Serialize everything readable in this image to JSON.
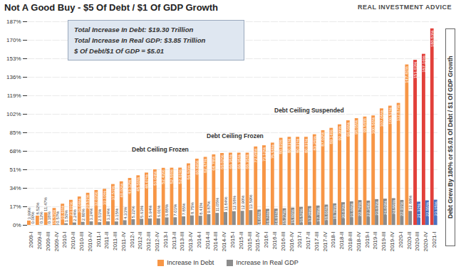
{
  "chart_data": {
    "type": "bar",
    "title": "Not A Good Buy - $5 Of Debt / $1 Of GDP Growth",
    "annotations": {
      "brand": "REAL INVESTMENT ADVICE",
      "box": [
        "Total Increase In Debt: $19.30 Trillion",
        "Total Increase In Real GDP: $3.85 Trillion",
        "$ Of Debt/$1 Of GDP = $5.01"
      ],
      "ceiling": [
        "Debt Ceiling Frozen",
        "Debt Ceiling Frozen",
        "Debt Ceiling Suspended"
      ],
      "side_note": "Debt Grew By 180% or $5.01 Of Debt / $1 Of GDP Growth"
    },
    "categories": [
      "2009-I",
      "2009-II",
      "2009-III",
      "2009-IV",
      "2010-I",
      "2010-II",
      "2010-III",
      "2010-IV",
      "2011-I",
      "2011-II",
      "2011-III",
      "2011-IV",
      "2012-I",
      "2012-II",
      "2012-III",
      "2012-IV",
      "2013-I",
      "2013-II",
      "2013-III",
      "2013-IV",
      "2014-I",
      "2014-II",
      "2014-III",
      "2014-IV",
      "2015-I",
      "2015-II",
      "2015-III",
      "2015-IV",
      "2016-I",
      "2016-II",
      "2016-III",
      "2016-IV",
      "2017-I",
      "2017-II",
      "2017-III",
      "2017-IV",
      "2018-I",
      "2018-II",
      "2018-III",
      "2018-IV",
      "2019-I",
      "2019-II",
      "2019-III",
      "2019-IV",
      "2020-I",
      "2020-II",
      "2020-III",
      "2020-IV",
      "2021-I"
    ],
    "series": [
      {
        "name": "Increase In Debt",
        "color": "#f79646",
        "colors": [
          "#f79646",
          "#f79646",
          "#f79646",
          "#f79646",
          "#f79646",
          "#f79646",
          "#f79646",
          "#f79646",
          "#f79646",
          "#f79646",
          "#f79646",
          "#f79646",
          "#f79646",
          "#f79646",
          "#f79646",
          "#f79646",
          "#f79646",
          "#f79646",
          "#f79646",
          "#f79646",
          "#f79646",
          "#f79646",
          "#f79646",
          "#f79646",
          "#f79646",
          "#f79646",
          "#f79646",
          "#f79646",
          "#f79646",
          "#f79646",
          "#f79646",
          "#f79646",
          "#f79646",
          "#f79646",
          "#f79646",
          "#f79646",
          "#f79646",
          "#f79646",
          "#f79646",
          "#f79646",
          "#f79646",
          "#f79646",
          "#f79646",
          "#f79646",
          "#f79646",
          "#f79646",
          "#e2403a",
          "#e2403a",
          "#e2403a"
        ],
        "values": [
          3.99,
          8.52,
          11.47,
          15.53,
          19.46,
          23.01,
          26.08,
          29.51,
          32.03,
          33.1,
          37.51,
          40.02,
          43.12,
          45.56,
          48.07,
          51.04,
          52.43,
          52.55,
          52.61,
          56.53,
          60.84,
          62.47,
          64.78,
          66.02,
          66.35,
          66.35,
          66.35,
          72.04,
          73.12,
          75.58,
          80.03,
          80.91,
          80.91,
          80.91,
          83.25,
          87.02,
          89.14,
          92.39,
          96.06,
          98.05,
          99.54,
          100.56,
          107.05,
          109.52,
          112.07,
          147.41,
          151.63,
          157.16,
          180.53
        ],
        "value_labels": [
          "3.99%",
          "8.52%",
          "11.47%",
          "15.53%",
          "19.46%",
          "23.01%",
          "26.08%",
          "29.51%",
          "32.03%",
          "33.10%",
          "37.51%",
          "40.02%",
          "43.12%",
          "45.56%",
          "48.07%",
          "51.04%",
          "52.43%",
          "52.55%",
          "52.61%",
          "56.53%",
          "60.84%",
          "62.47%",
          "64.78%",
          "66.02%",
          "66.35%",
          "66.35%",
          "66.35%",
          "72.04%",
          "73.12%",
          "75.58%",
          "80.03%",
          "80.91%",
          "80.91%",
          "80.91%",
          "83.25%",
          "87.02%",
          "89.14%",
          "92.39%",
          "96.06%",
          "98.05%",
          "99.54%",
          "100.56%",
          "107.05%",
          "109.52%",
          "112.07%",
          "147.41%",
          "151.63%",
          "157.16%",
          "180.53%"
        ]
      },
      {
        "name": "Increase In Real GDP",
        "color": "#8c8c8c",
        "colors": [
          "#8c8c8c",
          "#8c8c8c",
          "#8c8c8c",
          "#8c8c8c",
          "#8c8c8c",
          "#8c8c8c",
          "#8c8c8c",
          "#8c8c8c",
          "#8c8c8c",
          "#8c8c8c",
          "#8c8c8c",
          "#8c8c8c",
          "#8c8c8c",
          "#8c8c8c",
          "#8c8c8c",
          "#8c8c8c",
          "#8c8c8c",
          "#8c8c8c",
          "#8c8c8c",
          "#8c8c8c",
          "#8c8c8c",
          "#8c8c8c",
          "#8c8c8c",
          "#8c8c8c",
          "#8c8c8c",
          "#8c8c8c",
          "#8c8c8c",
          "#8c8c8c",
          "#8c8c8c",
          "#8c8c8c",
          "#8c8c8c",
          "#8c8c8c",
          "#8c8c8c",
          "#8c8c8c",
          "#8c8c8c",
          "#8c8c8c",
          "#8c8c8c",
          "#8c8c8c",
          "#8c8c8c",
          "#8c8c8c",
          "#8c8c8c",
          "#8c8c8c",
          "#8c8c8c",
          "#8c8c8c",
          "#8c8c8c",
          "#8c8c8c",
          "#4a72c2",
          "#4a72c2",
          "#4a72c2"
        ],
        "values": [
          0,
          0.12,
          0.18,
          0.57,
          1.5,
          2.24,
          2.8,
          3.24,
          2.51,
          3.24,
          3.15,
          4.31,
          5.22,
          5.63,
          5.94,
          6.01,
          6.88,
          7.01,
          7.85,
          8.75,
          8.41,
          9.87,
          11.05,
          11.84,
          12.58,
          12.9,
          13.59,
          14.08,
          14.76,
          14.91,
          15.27,
          15.89,
          16.52,
          17.28,
          17.78,
          18.66,
          19.78,
          20.83,
          21.6,
          22.74,
          22.34,
          23.63,
          24.09,
          24.55,
          22.91,
          12.88,
          21.32,
          22.55,
          23.15
        ],
        "value_labels": [
          "0.00%",
          "0.12%",
          "0.18%",
          "0.57%",
          "1.50%",
          "2.24%",
          "2.80%",
          "3.24%",
          "2.51%",
          "3.24%",
          "3.15%",
          "4.31%",
          "5.22%",
          "5.63%",
          "5.94%",
          "6.01%",
          "6.88%",
          "7.01%",
          "7.85%",
          "8.75%",
          "8.41%",
          "9.87%",
          "11.05%",
          "11.84%",
          "12.58%",
          "12.90%",
          "13.59%",
          "14.08%",
          "14.76%",
          "14.91%",
          "15.27%",
          "15.89%",
          "16.52%",
          "17.28%",
          "17.78%",
          "18.66%",
          "19.78%",
          "20.83%",
          "21.60%",
          "22.74%",
          "22.34%",
          "23.63%",
          "24.09%",
          "24.55%",
          "22.91%",
          "12.88%",
          "21.32%",
          "22.55%",
          "23.15%"
        ]
      }
    ],
    "ylim": [
      0,
      187
    ],
    "yticks": [
      {
        "value": 0,
        "label": "0%"
      },
      {
        "value": 17,
        "label": "17%"
      },
      {
        "value": 34,
        "label": "34%"
      },
      {
        "value": 51,
        "label": "51%"
      },
      {
        "value": 68,
        "label": "68%"
      },
      {
        "value": 85,
        "label": "85%"
      },
      {
        "value": 102,
        "label": "102%"
      },
      {
        "value": 119,
        "label": "119%"
      },
      {
        "value": 136,
        "label": "136%"
      },
      {
        "value": 153,
        "label": "153%"
      },
      {
        "value": 170,
        "label": "170%"
      },
      {
        "value": 187,
        "label": "187%"
      }
    ],
    "grid": true,
    "data_labels": true,
    "legend": "bottom"
  }
}
